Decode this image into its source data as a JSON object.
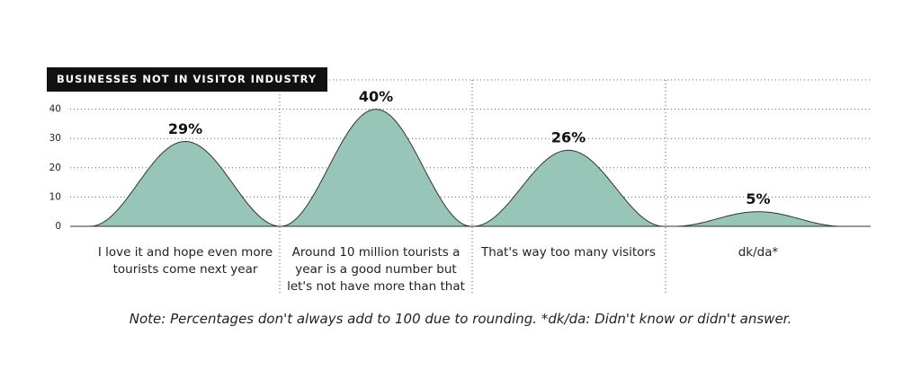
{
  "chart_data": {
    "type": "bar",
    "title": "BUSINESSES NOT IN VISITOR INDUSTRY",
    "categories": [
      "I love it and hope even more tourists come next year",
      "Around 10 million tourists a year is a good number but let's not have more than that",
      "That's way too many visitors",
      "dk/da*"
    ],
    "values": [
      29,
      40,
      26,
      5
    ],
    "value_labels": [
      "29%",
      "40%",
      "26%",
      "5%"
    ],
    "color": "#97c6b8",
    "ylim": [
      0,
      50
    ],
    "yticks": [
      0,
      10,
      20,
      30,
      40
    ],
    "grid": true,
    "note": "Note: Percentages don't always add to 100 due to rounding. *dk/da: Didn't know or didn't answer."
  }
}
